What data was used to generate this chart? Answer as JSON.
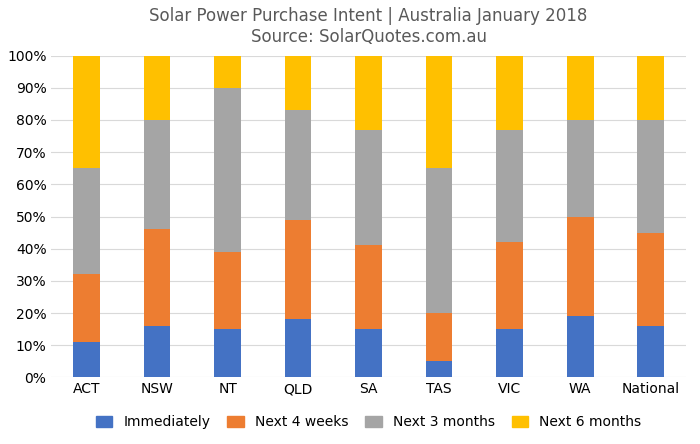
{
  "title_line1": "Solar Power Purchase Intent | Australia January 2018",
  "title_line2": "Source: SolarQuotes.com.au",
  "categories": [
    "ACT",
    "NSW",
    "NT",
    "QLD",
    "SA",
    "TAS",
    "VIC",
    "WA",
    "National"
  ],
  "series": {
    "Immediately": [
      11,
      16,
      15,
      18,
      15,
      5,
      15,
      19,
      16
    ],
    "Next 4 weeks": [
      21,
      30,
      24,
      31,
      26,
      15,
      27,
      31,
      29
    ],
    "Next 3 months": [
      33,
      34,
      51,
      34,
      36,
      45,
      35,
      30,
      35
    ],
    "Next 6 months": [
      35,
      20,
      10,
      17,
      23,
      35,
      23,
      20,
      20
    ]
  },
  "colors": {
    "Immediately": "#4472C4",
    "Next 4 weeks": "#ED7D31",
    "Next 3 months": "#A5A5A5",
    "Next 6 months": "#FFC000"
  },
  "legend_order": [
    "Immediately",
    "Next 4 weeks",
    "Next 3 months",
    "Next 6 months"
  ],
  "ylim": [
    0,
    100
  ],
  "yticks": [
    0,
    10,
    20,
    30,
    40,
    50,
    60,
    70,
    80,
    90,
    100
  ],
  "ytick_labels": [
    "0%",
    "10%",
    "20%",
    "30%",
    "40%",
    "50%",
    "60%",
    "70%",
    "80%",
    "90%",
    "100%"
  ],
  "background_color": "#FFFFFF",
  "grid_color": "#D9D9D9",
  "title_fontsize": 12,
  "axis_fontsize": 10,
  "legend_fontsize": 10,
  "bar_width": 0.38
}
